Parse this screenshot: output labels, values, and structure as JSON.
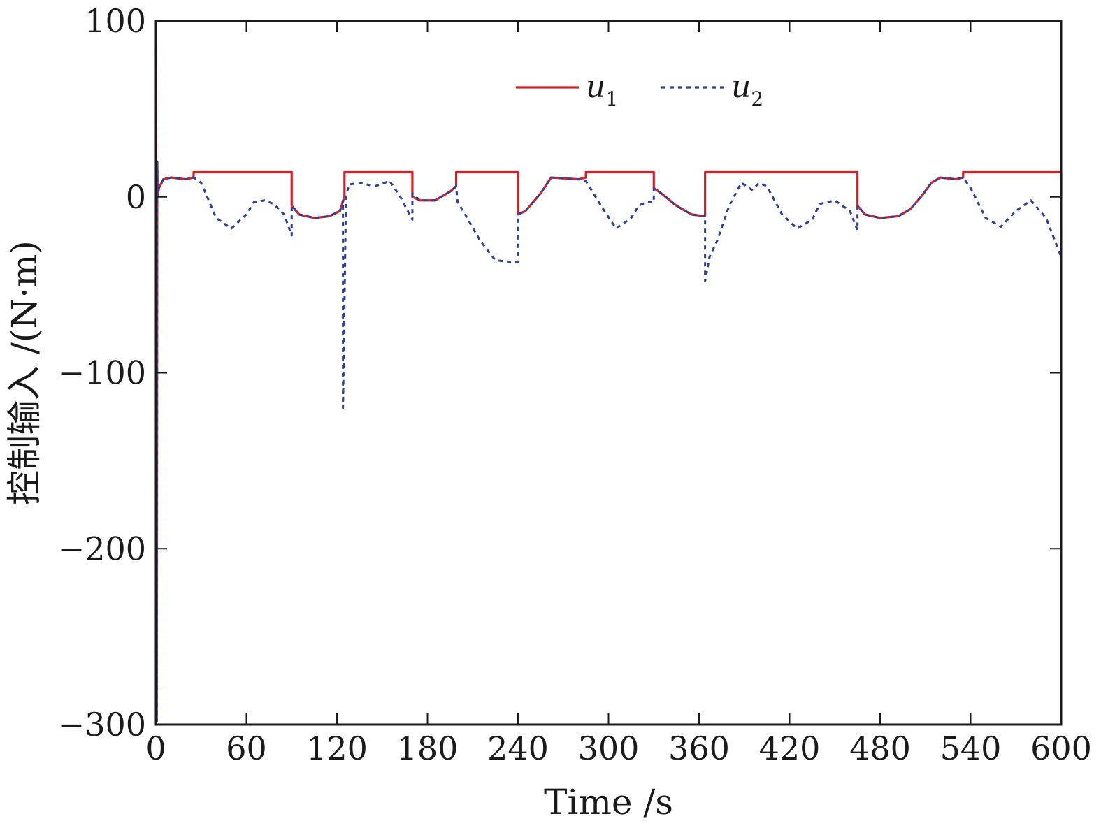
{
  "chart_data": {
    "type": "line",
    "title": "",
    "xlabel": "Time /s",
    "ylabel": "控制输入 /(N·m)",
    "xlim": [
      0,
      600
    ],
    "ylim": [
      -300,
      100
    ],
    "xticks": [
      0,
      60,
      120,
      180,
      240,
      300,
      360,
      420,
      480,
      540,
      600
    ],
    "xtick_labels": [
      "0",
      "60",
      "120",
      "180",
      "240",
      "300",
      "360",
      "420",
      "480",
      "540",
      "600"
    ],
    "yticks": [
      100,
      0,
      -100,
      -200,
      -300
    ],
    "ytick_labels": [
      "100",
      "0",
      "−100",
      "−200",
      "−300"
    ],
    "grid": false,
    "legend_position": "top-center",
    "series": [
      {
        "name": "u",
        "subscript": "1",
        "color": "#d62027",
        "dash": "solid",
        "x": [
          0,
          0.3,
          0.6,
          0.9,
          1.2,
          2,
          5,
          10,
          20,
          25,
          25.01,
          90,
          90.01,
          95,
          105,
          115,
          122,
          125,
          125.01,
          170,
          170.01,
          175,
          185,
          195,
          199,
          199.01,
          240,
          240.01,
          245,
          255,
          262,
          280,
          285,
          285.01,
          330,
          330.01,
          335,
          345,
          355,
          364,
          364.01,
          465,
          465.01,
          470,
          480,
          492,
          500,
          508,
          514,
          520,
          530,
          535,
          535.01,
          600,
          600.01
        ],
        "y": [
          85,
          0,
          -298,
          20,
          0,
          5,
          10,
          11,
          10,
          11,
          14,
          14,
          -5,
          -10,
          -12,
          -11,
          -8,
          0,
          14,
          14,
          0,
          -2,
          -2,
          3,
          6,
          14,
          14,
          -10,
          -8,
          2,
          11,
          10,
          11,
          14,
          14,
          5,
          2,
          -5,
          -10,
          -11,
          14,
          14,
          -5,
          -10,
          -12,
          -11,
          -7,
          1,
          8,
          11,
          10,
          11,
          14,
          14,
          0
        ]
      },
      {
        "name": "u",
        "subscript": "2",
        "color": "#2c3f99",
        "dash": "dotted",
        "x": [
          0,
          0.3,
          0.6,
          0.9,
          1.2,
          2,
          5,
          10,
          20,
          25,
          30,
          40,
          50,
          60,
          65,
          72,
          78,
          85,
          90,
          90.01,
          95,
          105,
          115,
          122,
          124,
          124.01,
          126,
          128,
          135,
          145,
          155,
          162,
          170,
          170.01,
          175,
          185,
          195,
          199,
          200,
          205,
          215,
          225,
          235,
          240,
          240.01,
          245,
          255,
          262,
          280,
          285,
          295,
          305,
          315,
          320,
          325,
          330,
          330.01,
          335,
          345,
          355,
          364,
          364.01,
          367,
          372,
          380,
          388,
          395,
          400,
          405,
          415,
          425,
          435,
          440,
          450,
          460,
          465,
          465.01,
          470,
          480,
          492,
          500,
          508,
          514,
          520,
          530,
          535,
          540,
          550,
          560,
          570,
          580,
          590,
          600
        ],
        "y": [
          85,
          0,
          -298,
          20,
          0,
          5,
          10,
          11,
          10,
          11,
          8,
          -12,
          -18,
          -10,
          -3,
          -2,
          -4,
          -10,
          -22,
          -5,
          -10,
          -12,
          -11,
          -8,
          -2,
          -120,
          0,
          7,
          8,
          6,
          9,
          0,
          -13,
          2,
          -2,
          -2,
          3,
          6,
          -3,
          -10,
          -25,
          -36,
          -37,
          -37,
          -10,
          -8,
          2,
          11,
          10,
          9,
          -5,
          -18,
          -12,
          -5,
          -3,
          -3,
          5,
          2,
          -5,
          -10,
          -11,
          -48,
          -34,
          -25,
          -5,
          8,
          4,
          8,
          6,
          -10,
          -18,
          -13,
          -4,
          -2,
          -8,
          -19,
          -5,
          -10,
          -12,
          -11,
          -7,
          1,
          8,
          11,
          10,
          11,
          5,
          -12,
          -17,
          -8,
          -2,
          -12,
          -34
        ]
      }
    ]
  }
}
